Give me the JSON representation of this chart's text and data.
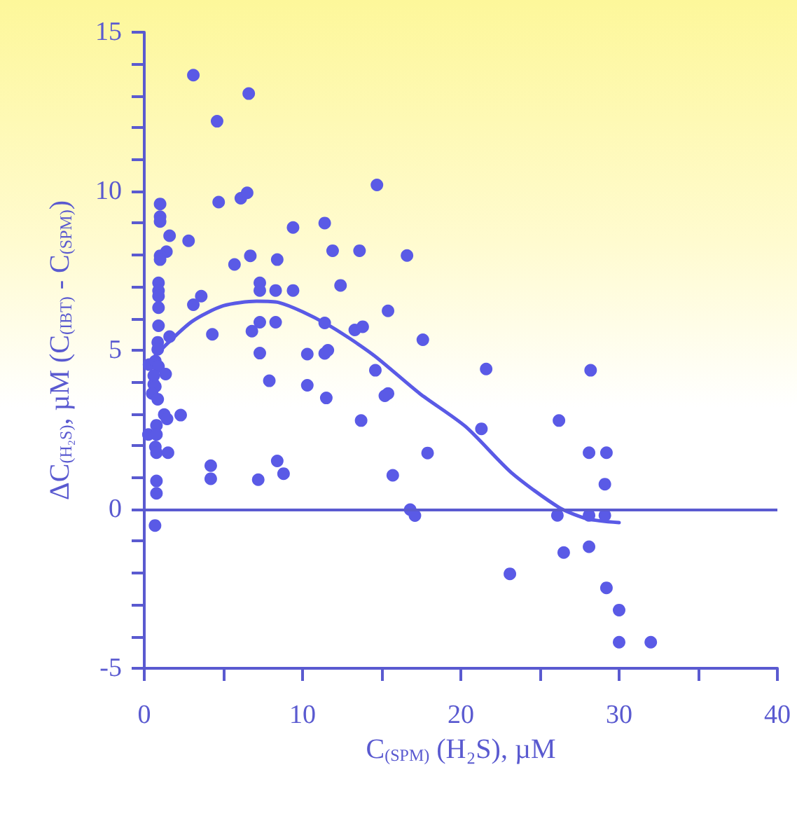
{
  "chart_data": {
    "type": "scatter",
    "xlabel": "C$_{(SPM)}$ (H₂S), µM",
    "ylabel": "ΔC$_{(H₂S)}$, µM (C$_{(IBT)}$ - C$_{(SPM)}$)",
    "xlim": [
      0,
      40
    ],
    "ylim": [
      -5,
      15
    ],
    "xticks": [
      0,
      {
        "value": 5,
        "label": null
      },
      10,
      {
        "value": 15,
        "label": null
      },
      20,
      {
        "value": 25,
        "label": null
      },
      30,
      {
        "value": 35,
        "label": null
      },
      40
    ],
    "yticks": [
      -5,
      {
        "value": -4,
        "label": null
      },
      {
        "value": -3,
        "label": null
      },
      {
        "value": -2,
        "label": null
      },
      {
        "value": -1,
        "label": null
      },
      0,
      {
        "value": 1,
        "label": null
      },
      {
        "value": 2,
        "label": null
      },
      {
        "value": 3,
        "label": null
      },
      {
        "value": 4,
        "label": null
      },
      5,
      {
        "value": 6,
        "label": null
      },
      {
        "value": 7,
        "label": null
      },
      {
        "value": 8,
        "label": null
      },
      {
        "value": 9,
        "label": null
      },
      10,
      {
        "value": 11,
        "label": null
      },
      {
        "value": 12,
        "label": null
      },
      {
        "value": 13,
        "label": null
      },
      {
        "value": 14,
        "label": null
      },
      15
    ],
    "marker": "circle",
    "line_style": "solid",
    "ref_lines": [
      {
        "axis": "y",
        "value": 0,
        "color": "#5a5ad0"
      }
    ],
    "series": [
      {
        "color": "#5a5ae6",
        "x": [
          3.1,
          6.6,
          4.6,
          4.7,
          6.1,
          6.5,
          1.0,
          1.0,
          1.0,
          1.6,
          2.8,
          9.4,
          11.4,
          11.9,
          1.4,
          1.0,
          1.0,
          6.7,
          5.7,
          8.4,
          0.9,
          0.9,
          0.9,
          7.3,
          7.3,
          8.3,
          9.4,
          3.6,
          3.1,
          0.9,
          7.3,
          8.3,
          11.4,
          0.9,
          1.6,
          4.3,
          6.8,
          0.85,
          0.85,
          7.3,
          10.3,
          11.4,
          11.6,
          0.3,
          0.7,
          0.9,
          1.35,
          7.9,
          10.3,
          0.6,
          0.6,
          0.7,
          0.5,
          0.85,
          11.5,
          1.26,
          1.44,
          2.3,
          0.77,
          0.26,
          0.77,
          0.7,
          0.77,
          1.5,
          4.2,
          4.2,
          8.4,
          8.8,
          7.2,
          0.77,
          0.77,
          0.68,
          14.7,
          13.6,
          16.6,
          12.4,
          15.4,
          13.3,
          13.8,
          17.6,
          21.6,
          14.6,
          15.2,
          15.4,
          13.7,
          21.3,
          17.9,
          15.7,
          16.8,
          17.1,
          28.2,
          26.2,
          28.1,
          29.2,
          29.1,
          26.1,
          28.1,
          29.1,
          26.5,
          28.1,
          23.1,
          29.2,
          30.0,
          30.0,
          32.0
        ],
        "values": [
          13.65,
          13.07,
          12.2,
          9.66,
          9.78,
          9.95,
          9.6,
          9.2,
          9.05,
          8.6,
          8.44,
          8.86,
          9.0,
          8.13,
          8.1,
          7.97,
          7.85,
          7.97,
          7.7,
          7.85,
          7.12,
          6.87,
          6.7,
          7.12,
          6.88,
          6.88,
          6.88,
          6.7,
          6.43,
          6.34,
          5.88,
          5.88,
          5.86,
          5.77,
          5.43,
          5.5,
          5.6,
          5.25,
          5.03,
          4.91,
          4.88,
          4.9,
          5.0,
          4.55,
          4.66,
          4.49,
          4.25,
          4.04,
          3.9,
          4.2,
          3.93,
          3.86,
          3.64,
          3.46,
          3.5,
          2.98,
          2.84,
          2.96,
          2.64,
          2.35,
          2.35,
          1.96,
          1.78,
          1.78,
          1.37,
          0.96,
          1.52,
          1.12,
          0.93,
          0.89,
          0.5,
          -0.51,
          10.2,
          8.13,
          7.98,
          7.04,
          6.24,
          5.64,
          5.74,
          5.33,
          4.41,
          4.37,
          3.57,
          3.64,
          2.79,
          2.53,
          1.77,
          1.07,
          -0.01,
          -0.2,
          4.37,
          2.79,
          1.78,
          1.78,
          0.79,
          -0.19,
          -0.19,
          -0.19,
          -1.36,
          -1.18,
          -2.03,
          -2.47,
          -3.17,
          -4.18,
          -4.18
        ]
      },
      {
        "type": "line",
        "color": "#5a5ae6",
        "marker": "none",
        "x": [
          0.7,
          3,
          5,
          7.1,
          8.5,
          11.5,
          14.4,
          17.4,
          20.3,
          23.2,
          26.2,
          28,
          30
        ],
        "values": [
          4.84,
          5.9,
          6.4,
          6.54,
          6.5,
          5.83,
          4.88,
          3.64,
          2.6,
          1.15,
          0.06,
          -0.3,
          -0.42
        ]
      }
    ]
  }
}
